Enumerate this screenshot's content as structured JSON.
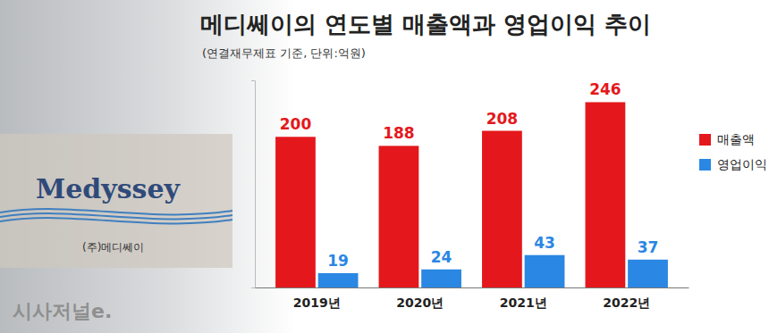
{
  "chart_data": {
    "type": "bar",
    "title": "메디쎄이의 연도별 매출액과 영업이익 추이",
    "subtitle": "(연결재무제표 기준, 단위:억원)",
    "categories": [
      "2019년",
      "2020년",
      "2021년",
      "2022년"
    ],
    "series": [
      {
        "name": "매출액",
        "color": "#e4181c",
        "values": [
          200,
          188,
          208,
          246
        ]
      },
      {
        "name": "영업이익",
        "color": "#2a87e3",
        "values": [
          19,
          24,
          43,
          37
        ]
      }
    ],
    "ylim": [
      0,
      275
    ],
    "yticks": [
      0
    ],
    "tick_labels": "x",
    "data_labels": true,
    "legend": "right",
    "grid": false,
    "annotations": [
      "Medyssey",
      "(주)메디쎄이",
      "시사저널e."
    ]
  }
}
